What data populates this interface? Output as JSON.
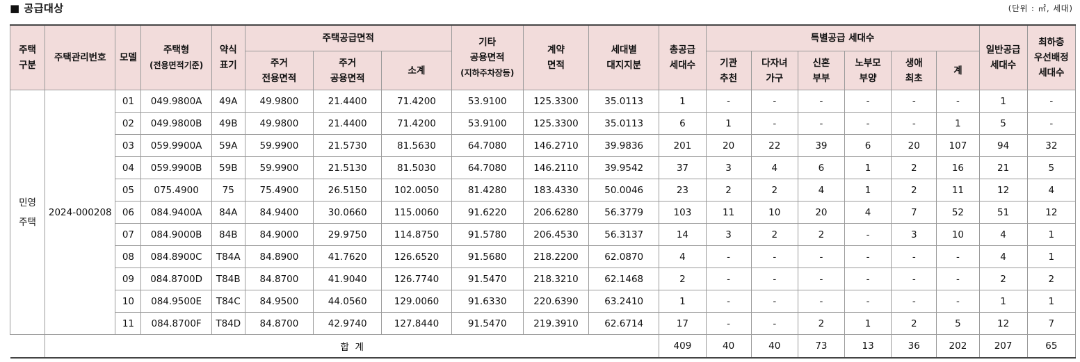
{
  "title": "■ 공급대상",
  "unit_note": "(단위 : ㎡, 세대)",
  "headers": {
    "housing_type_1": "주택",
    "housing_type_2": "구분",
    "mgmt_no": "주택관리번호",
    "model": "모델",
    "house_type_1": "주택형",
    "house_type_2": "(전용면적기준)",
    "abbr_1": "약식",
    "abbr_2": "표기",
    "supply_area": "주택공급면적",
    "res_exclusive_1": "주거",
    "res_exclusive_2": "전용면적",
    "res_common_1": "주거",
    "res_common_2": "공용면적",
    "subtotal": "소계",
    "other_1": "기타",
    "other_2": "공용면적",
    "other_3": "(지하주차장등)",
    "contract_1": "계약",
    "contract_2": "면적",
    "land_1": "세대별",
    "land_2": "대지지분",
    "total_supply_1": "총공급",
    "total_supply_2": "세대수",
    "special": "특별공급 세대수",
    "institution_1": "기관",
    "institution_2": "추천",
    "multichild_1": "다자녀",
    "multichild_2": "가구",
    "newlywed_1": "신혼",
    "newlywed_2": "부부",
    "parent_1": "노부모",
    "parent_2": "부양",
    "firsttime_1": "생애",
    "firsttime_2": "최초",
    "special_total": "계",
    "general_1": "일반공급",
    "general_2": "세대수",
    "lowest_1": "최하층",
    "lowest_2": "우선배정",
    "lowest_3": "세대수"
  },
  "group": {
    "category_1": "민영",
    "category_2": "주택",
    "mgmt_no": "2024-000208"
  },
  "rows": [
    {
      "model": "01",
      "type": "049.9800A",
      "abbr": "49A",
      "excl": "49.9800",
      "common": "21.4400",
      "subtotal": "71.4200",
      "other": "53.9100",
      "contract": "125.3300",
      "land": "35.0113",
      "total": "1",
      "inst": "-",
      "multi": "-",
      "newly": "-",
      "parent": "-",
      "first": "-",
      "sp_total": "-",
      "general": "1",
      "lowest": "-"
    },
    {
      "model": "02",
      "type": "049.9800B",
      "abbr": "49B",
      "excl": "49.9800",
      "common": "21.4400",
      "subtotal": "71.4200",
      "other": "53.9100",
      "contract": "125.3300",
      "land": "35.0113",
      "total": "6",
      "inst": "1",
      "multi": "-",
      "newly": "-",
      "parent": "-",
      "first": "-",
      "sp_total": "1",
      "general": "5",
      "lowest": "-"
    },
    {
      "model": "03",
      "type": "059.9900A",
      "abbr": "59A",
      "excl": "59.9900",
      "common": "21.5730",
      "subtotal": "81.5630",
      "other": "64.7080",
      "contract": "146.2710",
      "land": "39.9836",
      "total": "201",
      "inst": "20",
      "multi": "22",
      "newly": "39",
      "parent": "6",
      "first": "20",
      "sp_total": "107",
      "general": "94",
      "lowest": "32"
    },
    {
      "model": "04",
      "type": "059.9900B",
      "abbr": "59B",
      "excl": "59.9900",
      "common": "21.5130",
      "subtotal": "81.5030",
      "other": "64.7080",
      "contract": "146.2110",
      "land": "39.9542",
      "total": "37",
      "inst": "3",
      "multi": "4",
      "newly": "6",
      "parent": "1",
      "first": "2",
      "sp_total": "16",
      "general": "21",
      "lowest": "5"
    },
    {
      "model": "05",
      "type": "075.4900",
      "abbr": "75",
      "excl": "75.4900",
      "common": "26.5150",
      "subtotal": "102.0050",
      "other": "81.4280",
      "contract": "183.4330",
      "land": "50.0046",
      "total": "23",
      "inst": "2",
      "multi": "2",
      "newly": "4",
      "parent": "1",
      "first": "2",
      "sp_total": "11",
      "general": "12",
      "lowest": "4"
    },
    {
      "model": "06",
      "type": "084.9400A",
      "abbr": "84A",
      "excl": "84.9400",
      "common": "30.0660",
      "subtotal": "115.0060",
      "other": "91.6220",
      "contract": "206.6280",
      "land": "56.3779",
      "total": "103",
      "inst": "11",
      "multi": "10",
      "newly": "20",
      "parent": "4",
      "first": "7",
      "sp_total": "52",
      "general": "51",
      "lowest": "12"
    },
    {
      "model": "07",
      "type": "084.9000B",
      "abbr": "84B",
      "excl": "84.9000",
      "common": "29.9750",
      "subtotal": "114.8750",
      "other": "91.5780",
      "contract": "206.4530",
      "land": "56.3137",
      "total": "14",
      "inst": "3",
      "multi": "2",
      "newly": "2",
      "parent": "-",
      "first": "3",
      "sp_total": "10",
      "general": "4",
      "lowest": "1"
    },
    {
      "model": "08",
      "type": "084.8900C",
      "abbr": "T84A",
      "excl": "84.8900",
      "common": "41.7620",
      "subtotal": "126.6520",
      "other": "91.5680",
      "contract": "218.2200",
      "land": "62.0870",
      "total": "4",
      "inst": "-",
      "multi": "-",
      "newly": "-",
      "parent": "-",
      "first": "-",
      "sp_total": "-",
      "general": "4",
      "lowest": "1"
    },
    {
      "model": "09",
      "type": "084.8700D",
      "abbr": "T84B",
      "excl": "84.8700",
      "common": "41.9040",
      "subtotal": "126.7740",
      "other": "91.5470",
      "contract": "218.3210",
      "land": "62.1468",
      "total": "2",
      "inst": "-",
      "multi": "-",
      "newly": "-",
      "parent": "-",
      "first": "-",
      "sp_total": "-",
      "general": "2",
      "lowest": "2"
    },
    {
      "model": "10",
      "type": "084.9500E",
      "abbr": "T84C",
      "excl": "84.9500",
      "common": "44.0560",
      "subtotal": "129.0060",
      "other": "91.6330",
      "contract": "220.6390",
      "land": "63.2410",
      "total": "1",
      "inst": "-",
      "multi": "-",
      "newly": "-",
      "parent": "-",
      "first": "-",
      "sp_total": "-",
      "general": "1",
      "lowest": "1"
    },
    {
      "model": "11",
      "type": "084.8700F",
      "abbr": "T84D",
      "excl": "84.8700",
      "common": "42.9740",
      "subtotal": "127.8440",
      "other": "91.5470",
      "contract": "219.3910",
      "land": "62.6714",
      "total": "17",
      "inst": "-",
      "multi": "-",
      "newly": "2",
      "parent": "1",
      "first": "2",
      "sp_total": "5",
      "general": "12",
      "lowest": "7"
    }
  ],
  "total_row": {
    "label": "합  계",
    "total": "409",
    "inst": "40",
    "multi": "40",
    "newly": "73",
    "parent": "13",
    "first": "36",
    "sp_total": "202",
    "general": "207",
    "lowest": "65"
  }
}
